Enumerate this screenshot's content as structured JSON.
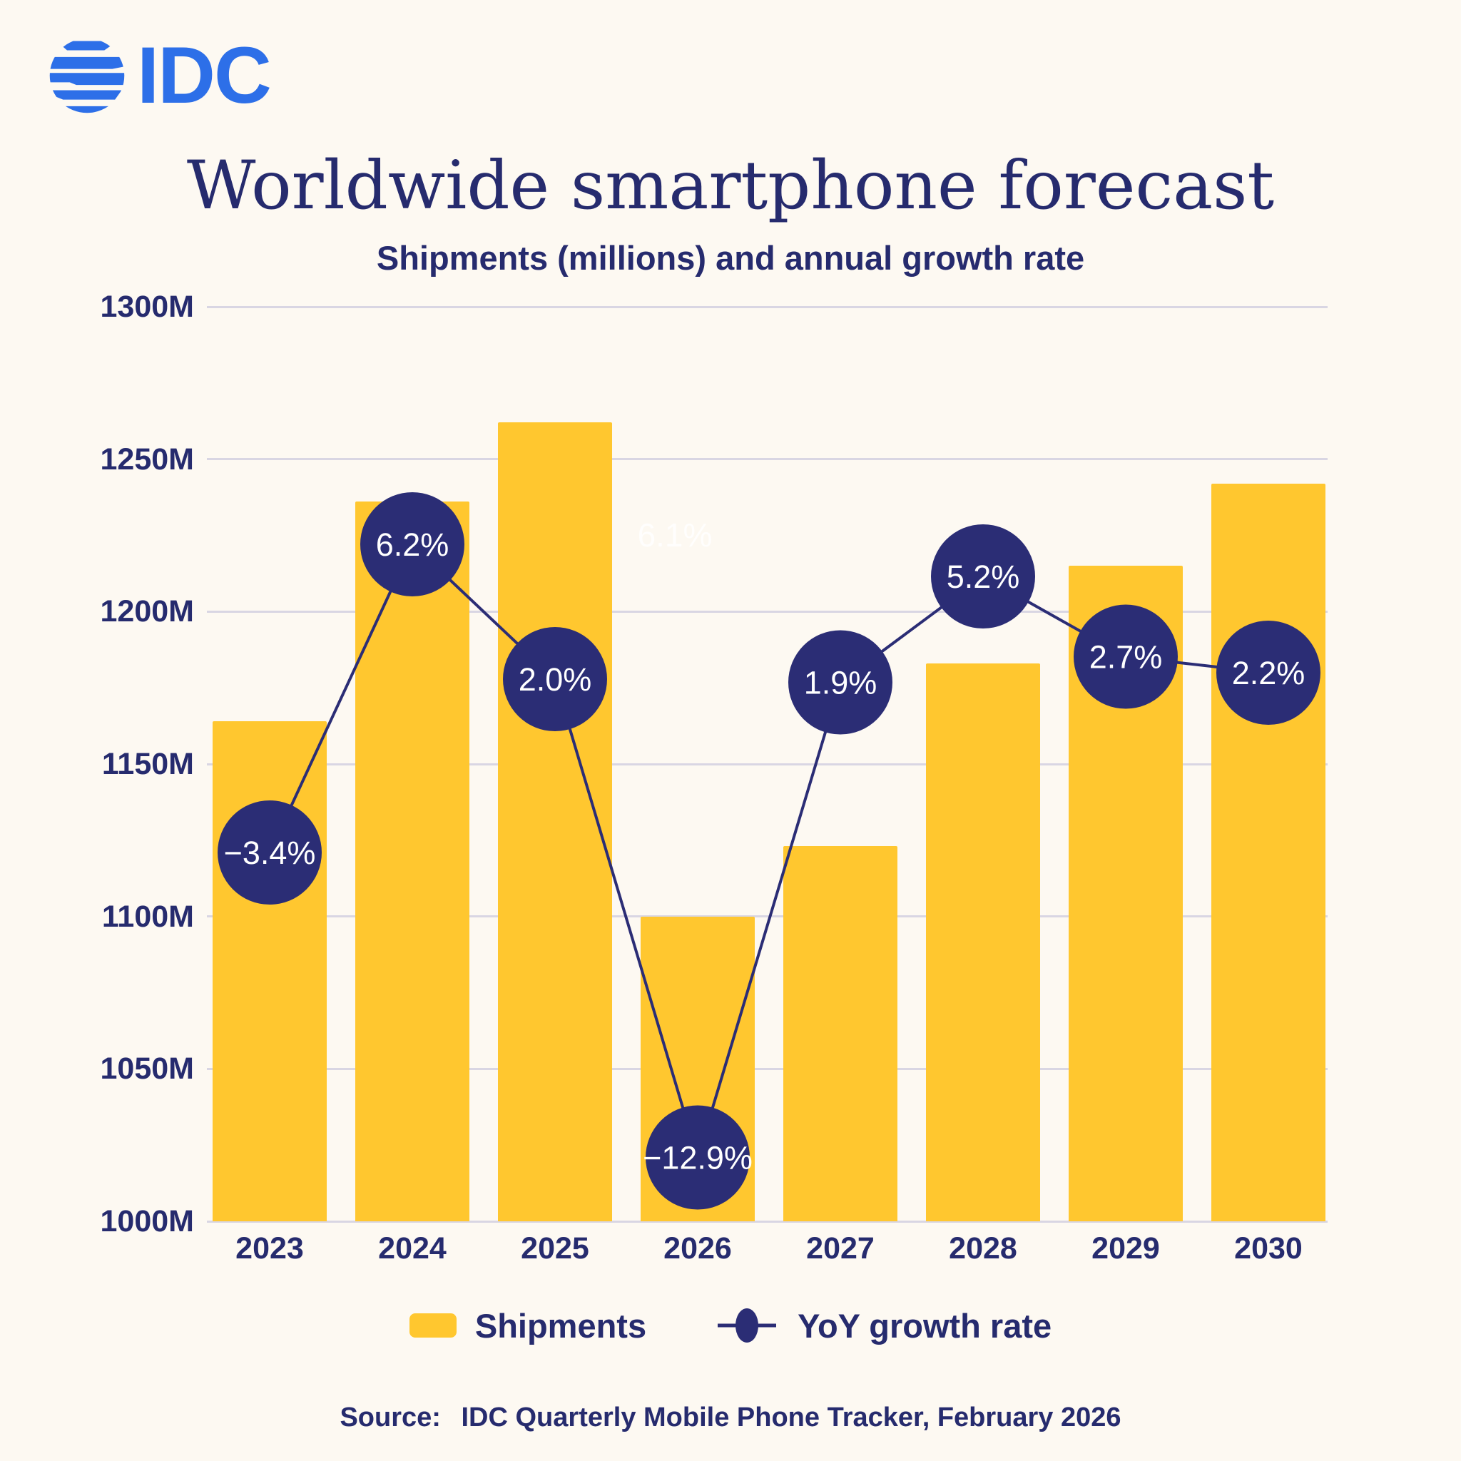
{
  "page": {
    "background": "#FDF9F2"
  },
  "logo": {
    "text": "IDC",
    "color": "#2D6FE8"
  },
  "header": {
    "title": "Worldwide smartphone forecast",
    "subtitle": "Shipments (millions) and annual growth rate"
  },
  "chart_data": {
    "type": "bar",
    "combo": "bar+line",
    "title": "Worldwide smartphone forecast",
    "subtitle": "Shipments (millions) and annual growth rate",
    "categories": [
      "2023",
      "2024",
      "2025",
      "2026",
      "2027",
      "2028",
      "2029",
      "2030"
    ],
    "series": [
      {
        "name": "Shipments",
        "type": "bar",
        "unit": "millions",
        "color": "#FFC72F",
        "values": [
          1164,
          1236,
          1262,
          1100,
          1123,
          1183,
          1215,
          1242
        ]
      },
      {
        "name": "YoY growth rate",
        "type": "line",
        "unit": "%",
        "color": "#2B2D75",
        "values": [
          -3.4,
          6.2,
          2.0,
          -12.9,
          1.9,
          5.2,
          2.7,
          2.2
        ],
        "labels": [
          "−3.4%",
          "6.2%",
          "2.0%",
          "−12.9%",
          "1.9%",
          "5.2%",
          "2.7%",
          "2.2%"
        ]
      }
    ],
    "y_axis": {
      "ticks": [
        "1300M",
        "1250M",
        "1200M",
        "1150M",
        "1100M",
        "1050M",
        "1000M"
      ],
      "min": 1000,
      "max": 1300,
      "label": "Shipments (millions)"
    },
    "grid": "horizontal",
    "gridline_color": "#D9D6E3",
    "legend_position": "bottom",
    "ghost_label": "6.1%"
  },
  "legend": {
    "items": [
      {
        "label": "Shipments",
        "swatch": "yellow-bar"
      },
      {
        "label": "YoY growth rate",
        "swatch": "line-dot"
      }
    ]
  },
  "source": {
    "prefix": "Source:",
    "text": "IDC Quarterly Mobile Phone Tracker, February 2026"
  }
}
